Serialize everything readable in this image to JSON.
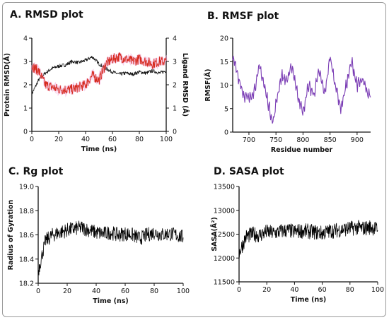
{
  "chart_data": [
    {
      "panel_title": "A. RMSD plot",
      "type": "line",
      "xlabel": "Time (ns)",
      "ylabel": "Protein RMSD(Å)",
      "y2label": "Ligand RMSD (Å)",
      "xlim": [
        0,
        100
      ],
      "ylim": [
        0,
        4
      ],
      "y2lim": [
        0,
        4
      ],
      "xticks": [
        0,
        20,
        40,
        60,
        80,
        100
      ],
      "yticks": [
        0,
        1,
        2,
        3,
        4
      ],
      "y2ticks": [
        0,
        1,
        2,
        3,
        4
      ],
      "colors": {
        "protein": "#111111",
        "ligand": "#d62a1e",
        "ligand_alt": "#2e8b2e"
      },
      "series": [
        {
          "axis": "left",
          "x": [
            0,
            5,
            10,
            15,
            20,
            25,
            30,
            35,
            40,
            45,
            50,
            55,
            60,
            65,
            70,
            75,
            80,
            85,
            90,
            95,
            100
          ],
          "values": [
            1.6,
            2.2,
            2.5,
            2.7,
            2.8,
            2.85,
            3.0,
            2.95,
            3.05,
            3.2,
            2.9,
            2.7,
            2.55,
            2.45,
            2.5,
            2.45,
            2.55,
            2.5,
            2.6,
            2.5,
            2.6
          ]
        },
        {
          "axis": "right",
          "x": [
            0,
            5,
            10,
            15,
            20,
            25,
            30,
            35,
            40,
            45,
            50,
            55,
            60,
            65,
            70,
            75,
            80,
            85,
            90,
            95,
            100
          ],
          "values": [
            2.8,
            2.6,
            2.0,
            1.9,
            1.8,
            1.8,
            1.8,
            1.9,
            2.0,
            2.4,
            2.2,
            2.9,
            3.1,
            3.2,
            3.1,
            3.0,
            3.1,
            3.0,
            2.9,
            3.0,
            3.0
          ]
        }
      ]
    },
    {
      "panel_title": "B. RMSF plot",
      "type": "line",
      "xlabel": "Residue number",
      "ylabel": "RMSF(Å)",
      "xlim": [
        670,
        925
      ],
      "ylim": [
        0,
        20
      ],
      "xticks": [
        700,
        750,
        800,
        850,
        900
      ],
      "yticks": [
        0,
        5,
        10,
        15,
        20
      ],
      "color": "#7a3cb4",
      "series": [
        {
          "x": [
            670,
            680,
            690,
            700,
            710,
            720,
            730,
            740,
            745,
            750,
            760,
            770,
            780,
            790,
            800,
            810,
            820,
            830,
            840,
            850,
            860,
            870,
            880,
            890,
            900,
            910,
            920
          ],
          "values": [
            16,
            12,
            8,
            7,
            9,
            14,
            9,
            4,
            2,
            6,
            12,
            11,
            14,
            8,
            4,
            10,
            8,
            13,
            8,
            16,
            10,
            5,
            10,
            15,
            10,
            11,
            8
          ]
        }
      ]
    },
    {
      "panel_title": "C. Rg plot",
      "type": "line",
      "xlabel": "Time (ns)",
      "ylabel": "Radius of Gyration",
      "xlim": [
        0,
        100
      ],
      "ylim": [
        18.2,
        19.0
      ],
      "xticks": [
        0,
        20,
        40,
        60,
        80,
        100
      ],
      "yticks": [
        18.2,
        18.4,
        18.6,
        18.8,
        19.0
      ],
      "color": "#000000",
      "series": [
        {
          "x": [
            0,
            5,
            10,
            15,
            20,
            25,
            30,
            35,
            40,
            45,
            50,
            55,
            60,
            65,
            70,
            75,
            80,
            85,
            90,
            95,
            100
          ],
          "values": [
            18.3,
            18.55,
            18.6,
            18.62,
            18.64,
            18.65,
            18.66,
            18.64,
            18.62,
            18.61,
            18.62,
            18.6,
            18.61,
            18.6,
            18.57,
            18.6,
            18.62,
            18.6,
            18.61,
            18.6,
            18.58
          ]
        }
      ]
    },
    {
      "panel_title": "D. SASA plot",
      "type": "line",
      "xlabel": "Time (ns)",
      "ylabel": "SASA(Å²)",
      "xlim": [
        0,
        100
      ],
      "ylim": [
        11500,
        13500
      ],
      "xticks": [
        0,
        20,
        40,
        60,
        80,
        100
      ],
      "yticks": [
        11500,
        12000,
        12500,
        13000,
        13500
      ],
      "color": "#000000",
      "series": [
        {
          "x": [
            0,
            5,
            10,
            15,
            20,
            25,
            30,
            35,
            40,
            45,
            50,
            55,
            60,
            65,
            70,
            75,
            80,
            85,
            90,
            95,
            100
          ],
          "values": [
            12100,
            12450,
            12500,
            12480,
            12550,
            12520,
            12560,
            12580,
            12550,
            12570,
            12560,
            12540,
            12520,
            12560,
            12580,
            12600,
            12620,
            12640,
            12620,
            12650,
            12600
          ]
        }
      ]
    }
  ]
}
